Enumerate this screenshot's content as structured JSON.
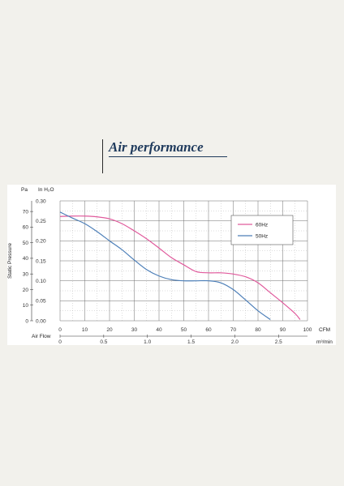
{
  "page": {
    "title": "Air performance"
  },
  "chart_data": {
    "type": "line",
    "title": "Air performance",
    "ylabel": "Static Pressure",
    "y_unit_left": "Pa",
    "y_unit_right": "In H₂O",
    "x_unit_top": "CFM",
    "x_unit_bottom": "m³/min",
    "x_axis_label": "Air Flow",
    "xlim": [
      0,
      100
    ],
    "ylim": [
      0,
      0.3
    ],
    "pa_ticks": [
      "0",
      "10",
      "20",
      "30",
      "40",
      "50",
      "60",
      "70"
    ],
    "inh2o_ticks": [
      "0.00",
      "0.05",
      "0.10",
      "0.15",
      "0.20",
      "0.25",
      "0.30"
    ],
    "cfm_ticks": [
      "0",
      "10",
      "20",
      "30",
      "40",
      "50",
      "60",
      "70",
      "80",
      "90",
      "100"
    ],
    "m3min_ticks": [
      "0",
      "0.5",
      "1.0",
      "1.5",
      "2.0",
      "2.5"
    ],
    "grid": true,
    "legend_position": "top-right",
    "series": [
      {
        "name": "60Hz",
        "color": "#e05a9c",
        "x": [
          0,
          5,
          10,
          15,
          20,
          25,
          30,
          35,
          40,
          45,
          50,
          55,
          60,
          65,
          70,
          75,
          80,
          85,
          90,
          95,
          97
        ],
        "y": [
          0.261,
          0.262,
          0.262,
          0.26,
          0.255,
          0.243,
          0.225,
          0.205,
          0.182,
          0.158,
          0.14,
          0.123,
          0.12,
          0.12,
          0.117,
          0.11,
          0.095,
          0.07,
          0.045,
          0.018,
          0.003
        ]
      },
      {
        "name": "50Hz",
        "color": "#4d7fb8",
        "x": [
          0,
          5,
          10,
          15,
          20,
          25,
          30,
          35,
          40,
          45,
          50,
          55,
          60,
          65,
          70,
          75,
          80,
          85
        ],
        "y": [
          0.272,
          0.257,
          0.243,
          0.223,
          0.2,
          0.178,
          0.152,
          0.128,
          0.112,
          0.103,
          0.1,
          0.1,
          0.1,
          0.095,
          0.078,
          0.052,
          0.025,
          0.003
        ]
      }
    ]
  }
}
